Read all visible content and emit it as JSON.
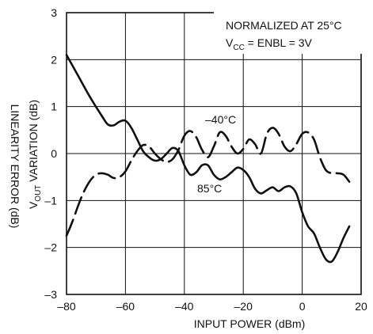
{
  "chart_data": {
    "type": "line",
    "xlabel": "INPUT POWER (dBm)",
    "ylabel_outer": "LINEARITY ERROR (dB)",
    "ylabel_inner": {
      "pre": "V",
      "sub": "OUT",
      "post": " VARIATION (dB)"
    },
    "xlim": [
      -80,
      20
    ],
    "ylim": [
      -3,
      3
    ],
    "x_ticks": [
      -80,
      -60,
      -40,
      -20,
      0,
      20
    ],
    "x_tick_labels": [
      "–80",
      "–60",
      "–40",
      "–20",
      "0",
      "20"
    ],
    "y_ticks": [
      -3,
      -2,
      -1,
      0,
      1,
      2,
      3
    ],
    "y_tick_labels": [
      "–3",
      "–2",
      "–1",
      "0",
      "1",
      "2",
      "3"
    ],
    "grid": true,
    "annotations": {
      "normalized": "NORMALIZED AT 25°C",
      "vcc": {
        "pre": "V",
        "sub": "CC",
        "post": " = ENBL = 3V"
      }
    },
    "series": [
      {
        "name": "85°C",
        "style": "solid",
        "x": [
          -80,
          -76,
          -72,
          -68,
          -66,
          -64,
          -62,
          -60,
          -58,
          -56,
          -54,
          -52,
          -50,
          -48,
          -46,
          -44,
          -42,
          -40,
          -38,
          -36,
          -34,
          -32,
          -30,
          -28,
          -26,
          -24,
          -22,
          -20,
          -18,
          -16,
          -14,
          -12,
          -10,
          -8,
          -6,
          -4,
          -2,
          0,
          2,
          4,
          6,
          8,
          10,
          12,
          14,
          16
        ],
        "y": [
          2.1,
          1.65,
          1.2,
          0.8,
          0.62,
          0.6,
          0.68,
          0.7,
          0.55,
          0.3,
          0.05,
          -0.08,
          -0.15,
          -0.12,
          0.0,
          0.12,
          0.05,
          -0.25,
          -0.45,
          -0.4,
          -0.25,
          -0.25,
          -0.45,
          -0.55,
          -0.5,
          -0.4,
          -0.3,
          -0.35,
          -0.5,
          -0.75,
          -0.85,
          -0.78,
          -0.72,
          -0.8,
          -0.72,
          -0.7,
          -0.85,
          -1.25,
          -1.55,
          -1.7,
          -2.0,
          -2.25,
          -2.3,
          -2.1,
          -1.8,
          -1.55
        ]
      },
      {
        "name": "–40°C",
        "style": "dashed",
        "x": [
          -80,
          -78,
          -76,
          -74,
          -72,
          -70,
          -68,
          -66,
          -64,
          -62,
          -60,
          -58,
          -56,
          -54,
          -52,
          -50,
          -48,
          -46,
          -44,
          -42,
          -40,
          -38,
          -36,
          -34,
          -32,
          -30,
          -28,
          -26,
          -24,
          -22,
          -20,
          -18,
          -16,
          -14,
          -12,
          -10,
          -8,
          -6,
          -4,
          -2,
          0,
          2,
          4,
          6,
          8,
          10,
          12,
          14,
          16
        ],
        "y": [
          -1.75,
          -1.45,
          -1.1,
          -0.8,
          -0.58,
          -0.45,
          -0.42,
          -0.45,
          -0.52,
          -0.5,
          -0.38,
          -0.15,
          0.05,
          0.18,
          0.15,
          0.0,
          -0.12,
          -0.18,
          -0.12,
          0.08,
          0.38,
          0.48,
          0.35,
          0.08,
          -0.08,
          0.15,
          0.45,
          0.38,
          0.15,
          0.0,
          0.1,
          0.3,
          0.2,
          0.0,
          0.42,
          0.55,
          0.42,
          0.15,
          0.05,
          0.2,
          0.42,
          0.45,
          0.3,
          -0.08,
          -0.35,
          -0.42,
          -0.42,
          -0.45,
          -0.6
        ]
      }
    ],
    "series_labels": [
      "–40°C",
      "85°C"
    ]
  }
}
